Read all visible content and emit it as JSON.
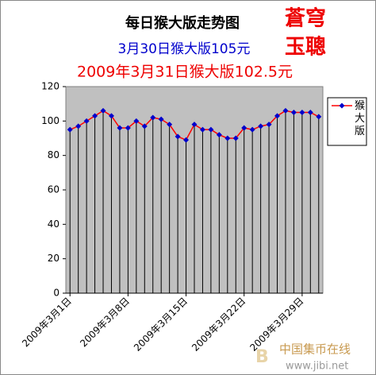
{
  "chart_data": {
    "type": "line",
    "title": "每日猴大版走势图",
    "subtitle": "3月30日猴大版105元",
    "subtitle2": "2009年3月31日猴大版102.5元",
    "annotations": [
      "蒼穹",
      "玉聰",
      "中国集币在线",
      "www.jibi.net"
    ],
    "categories": [
      "2009年3月1日",
      null,
      null,
      null,
      null,
      null,
      null,
      "2009年3月8日",
      null,
      null,
      null,
      null,
      null,
      null,
      "2009年3月15日",
      null,
      null,
      null,
      null,
      null,
      null,
      "2009年3月22日",
      null,
      null,
      null,
      null,
      null,
      null,
      "2009年3月29日",
      null,
      null
    ],
    "series": [
      {
        "name": "猴大版",
        "color": "#ff0000",
        "marker_color": "#0000cc",
        "values": [
          95,
          97,
          100,
          103,
          106,
          103,
          96,
          96,
          100,
          97,
          102,
          101,
          98,
          91,
          89,
          98,
          95,
          95,
          92,
          90,
          90,
          96,
          95,
          97,
          98,
          103,
          106,
          105,
          105,
          105,
          102.5
        ]
      }
    ],
    "ylim": [
      0,
      120
    ],
    "yticks": [
      0,
      20,
      40,
      60,
      80,
      100,
      120
    ],
    "plot_background": "#c0c0c0",
    "drop_lines": true,
    "legend": "right"
  }
}
